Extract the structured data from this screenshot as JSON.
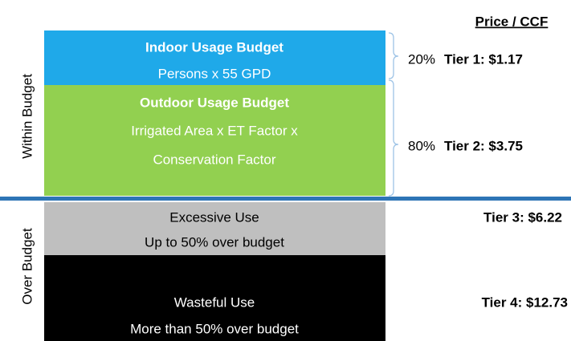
{
  "header": {
    "title": "Price / CCF"
  },
  "groups": [
    {
      "label": "Within Budget"
    },
    {
      "label": "Over Budget"
    }
  ],
  "blocks": [
    {
      "title": "Indoor Usage Budget",
      "lines": [
        "Persons x 55 GPD"
      ]
    },
    {
      "title": "Outdoor Usage Budget",
      "lines": [
        "Irrigated Area x ET Factor x",
        "Conservation Factor"
      ]
    },
    {
      "title": "Excessive Use",
      "lines": [
        "Up to 50% over budget"
      ]
    },
    {
      "title": "Wasteful Use",
      "lines": [
        "More than 50% over budget"
      ]
    }
  ],
  "tiers": [
    {
      "share": "20%",
      "label": "Tier 1: $1.17"
    },
    {
      "share": "80%",
      "label": "Tier 2: $3.75"
    },
    {
      "label": "Tier 3: $6.22"
    },
    {
      "label": "Tier 4: $12.73"
    }
  ]
}
